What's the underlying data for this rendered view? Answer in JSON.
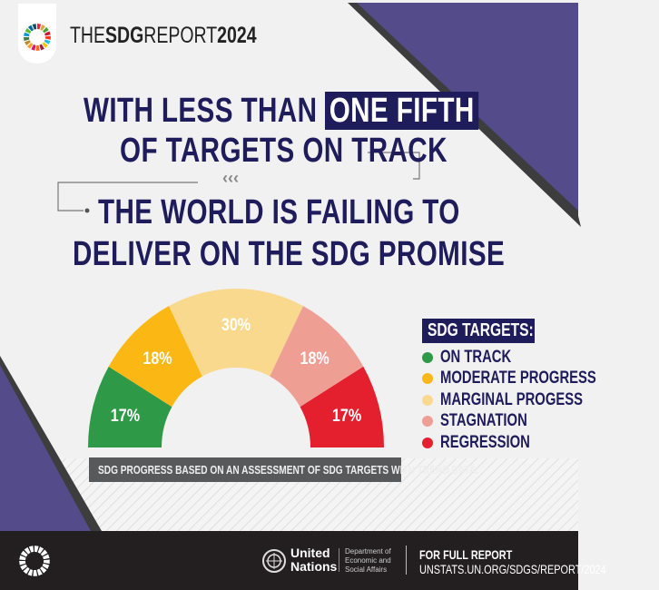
{
  "header": {
    "brand_prefix": "THE",
    "brand_bold": "SDG",
    "brand_mid": "REPORT",
    "brand_year": "2024"
  },
  "headline": {
    "line1_pre": "WITH LESS THAN",
    "line1_highlight": "ONE FIFTH",
    "line2": "OF TARGETS ON TRACK",
    "arrows": "‹‹‹",
    "line3": "THE WORLD IS FAILING TO",
    "line4": "DELIVER ON THE SDG PROMISE"
  },
  "chart_data": {
    "type": "pie",
    "variant": "semi-donut",
    "categories": [
      "ON TRACK",
      "MODERATE PROGRESS",
      "MARGINAL PROGESS",
      "STAGNATION",
      "REGRESSION"
    ],
    "values": [
      17,
      18,
      30,
      18,
      17
    ],
    "labels": [
      "17%",
      "18%",
      "30%",
      "18%",
      "17%"
    ],
    "colors": [
      "#2e9a47",
      "#fbb713",
      "#f9d98e",
      "#ef9e94",
      "#e41f2e"
    ],
    "legend_title": "SDG TARGETS:",
    "legend_placement": "right",
    "note": "SDG PROGRESS BASED ON AN ASSESSMENT OF SDG TARGETS WITH TREND DATA."
  },
  "footer": {
    "un_line1": "United",
    "un_line2": "Nations",
    "desa_line1": "Department of",
    "desa_line2": "Economic and",
    "desa_line3": "Social Affairs",
    "cta": "FOR FULL REPORT",
    "url": "UNSTATS.UN.ORG/SDGS/REPORT/2024"
  },
  "colors": {
    "navy": "#1f1c5c",
    "purple": "#544b8a",
    "footer": "#231f20"
  }
}
